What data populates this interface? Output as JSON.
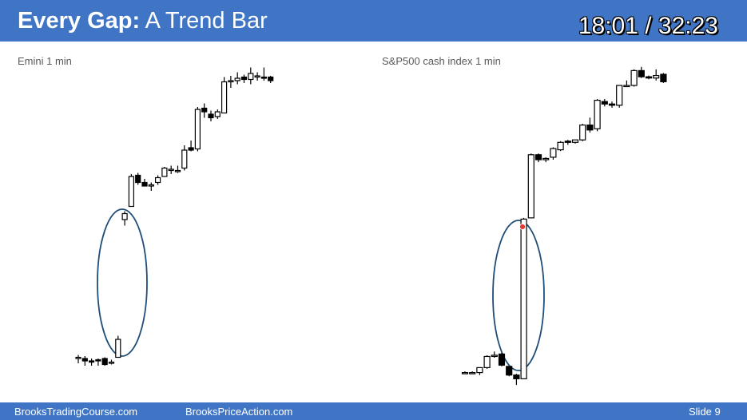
{
  "header": {
    "title_bold": "Every Gap:",
    "title_rest": " A Trend Bar",
    "timer": "18:01 / 32:23"
  },
  "charts": {
    "left_label": "Emini 1 min",
    "right_label": "S&P500 cash index 1 min"
  },
  "footer": {
    "left": "BrooksTradingCourse.com",
    "middle": "BrooksPriceAction.com",
    "slide": "Slide  9"
  },
  "colors": {
    "header_bg": "#3f75c4",
    "candle": "#000000",
    "ellipse": "#1f4e79",
    "marker": "#e53935"
  },
  "chart_data": [
    {
      "type": "candlestick",
      "title": "Emini 1 min",
      "annotation": "ellipse around gap",
      "bars": [
        {
          "o": 11.5,
          "h": 12.5,
          "l": 9.0,
          "c": 11.5
        },
        {
          "o": 11.0,
          "h": 12.0,
          "l": 8.0,
          "c": 10.0
        },
        {
          "o": 10.0,
          "h": 11.0,
          "l": 8.0,
          "c": 9.5
        },
        {
          "o": 10.5,
          "h": 11.0,
          "l": 8.0,
          "c": 10.0
        },
        {
          "o": 11.0,
          "h": 11.5,
          "l": 8.0,
          "c": 8.5
        },
        {
          "o": 9.5,
          "h": 10.5,
          "l": 8.5,
          "c": 9.5
        },
        {
          "o": 11.5,
          "h": 20.5,
          "l": 11.5,
          "c": 19.0
        },
        {
          "o": 69.0,
          "h": 72.5,
          "l": 66.5,
          "c": 71.5
        },
        {
          "o": 74.5,
          "h": 88.0,
          "l": 74.5,
          "c": 87.0
        },
        {
          "o": 87.5,
          "h": 88.5,
          "l": 83.5,
          "c": 84.5
        },
        {
          "o": 84.5,
          "h": 86.0,
          "l": 83.0,
          "c": 83.0
        },
        {
          "o": 83.0,
          "h": 84.5,
          "l": 81.0,
          "c": 83.5
        },
        {
          "o": 84.5,
          "h": 87.5,
          "l": 83.5,
          "c": 86.5
        },
        {
          "o": 87.0,
          "h": 91.0,
          "l": 87.0,
          "c": 90.5
        },
        {
          "o": 89.5,
          "h": 91.5,
          "l": 88.0,
          "c": 90.0
        },
        {
          "o": 89.5,
          "h": 91.5,
          "l": 88.5,
          "c": 89.5
        },
        {
          "o": 90.5,
          "h": 100.0,
          "l": 89.5,
          "c": 98.0
        },
        {
          "o": 99.0,
          "h": 102.0,
          "l": 97.5,
          "c": 98.0
        },
        {
          "o": 98.5,
          "h": 116.0,
          "l": 97.5,
          "c": 115.0
        },
        {
          "o": 115.5,
          "h": 117.5,
          "l": 111.5,
          "c": 114.0
        },
        {
          "o": 113.0,
          "h": 114.5,
          "l": 110.0,
          "c": 111.5
        },
        {
          "o": 112.0,
          "h": 115.0,
          "l": 111.0,
          "c": 114.0
        },
        {
          "o": 113.5,
          "h": 128.5,
          "l": 113.5,
          "c": 126.5
        },
        {
          "o": 126.5,
          "h": 129.0,
          "l": 124.0,
          "c": 127.0
        },
        {
          "o": 127.0,
          "h": 130.5,
          "l": 125.5,
          "c": 128.0
        },
        {
          "o": 128.5,
          "h": 129.5,
          "l": 126.0,
          "c": 127.5
        },
        {
          "o": 127.5,
          "h": 132.5,
          "l": 125.5,
          "c": 130.0
        },
        {
          "o": 128.5,
          "h": 130.5,
          "l": 127.0,
          "c": 129.0
        },
        {
          "o": 128.5,
          "h": 132.5,
          "l": 127.0,
          "c": 128.0
        },
        {
          "o": 128.5,
          "h": 129.0,
          "l": 126.0,
          "c": 127.0
        }
      ]
    },
    {
      "type": "candlestick",
      "title": "S&P500 cash index 1 min",
      "annotation": "ellipse around gap with red dot marker",
      "bars": [
        {
          "o": 14.0,
          "h": 14.5,
          "l": 13.5,
          "c": 14.0
        },
        {
          "o": 14.0,
          "h": 14.5,
          "l": 13.5,
          "c": 14.0
        },
        {
          "o": 14.0,
          "h": 16.0,
          "l": 13.0,
          "c": 16.0
        },
        {
          "o": 16.0,
          "h": 21.0,
          "l": 15.5,
          "c": 20.5
        },
        {
          "o": 20.5,
          "h": 22.5,
          "l": 20.0,
          "c": 21.0
        },
        {
          "o": 21.5,
          "h": 22.0,
          "l": 16.5,
          "c": 17.0
        },
        {
          "o": 16.5,
          "h": 16.5,
          "l": 12.5,
          "c": 13.0
        },
        {
          "o": 13.0,
          "h": 13.5,
          "l": 9.0,
          "c": 11.5
        },
        {
          "o": 11.5,
          "h": 76.5,
          "l": 11.5,
          "c": 76.0
        },
        {
          "o": 76.5,
          "h": 102.5,
          "l": 76.5,
          "c": 102.0
        },
        {
          "o": 102.0,
          "h": 102.5,
          "l": 99.0,
          "c": 100.0
        },
        {
          "o": 100.0,
          "h": 101.0,
          "l": 99.0,
          "c": 100.5
        },
        {
          "o": 101.0,
          "h": 105.0,
          "l": 100.0,
          "c": 104.5
        },
        {
          "o": 104.0,
          "h": 107.5,
          "l": 103.5,
          "c": 107.0
        },
        {
          "o": 107.5,
          "h": 108.0,
          "l": 106.0,
          "c": 107.0
        },
        {
          "o": 107.0,
          "h": 108.0,
          "l": 106.5,
          "c": 108.0
        },
        {
          "o": 108.0,
          "h": 114.5,
          "l": 107.5,
          "c": 114.0
        },
        {
          "o": 114.0,
          "h": 117.0,
          "l": 111.0,
          "c": 112.0
        },
        {
          "o": 112.5,
          "h": 124.5,
          "l": 111.5,
          "c": 124.0
        },
        {
          "o": 123.5,
          "h": 124.5,
          "l": 121.5,
          "c": 122.5
        },
        {
          "o": 122.5,
          "h": 123.5,
          "l": 121.0,
          "c": 122.0
        },
        {
          "o": 122.0,
          "h": 130.0,
          "l": 121.0,
          "c": 130.0
        },
        {
          "o": 130.0,
          "h": 132.0,
          "l": 129.5,
          "c": 130.0
        },
        {
          "o": 130.0,
          "h": 136.5,
          "l": 129.5,
          "c": 136.0
        },
        {
          "o": 136.0,
          "h": 137.5,
          "l": 133.0,
          "c": 133.5
        },
        {
          "o": 133.5,
          "h": 134.0,
          "l": 132.5,
          "c": 133.0
        },
        {
          "o": 133.0,
          "h": 136.5,
          "l": 132.0,
          "c": 134.0
        },
        {
          "o": 134.5,
          "h": 135.0,
          "l": 131.0,
          "c": 131.5
        }
      ]
    }
  ]
}
